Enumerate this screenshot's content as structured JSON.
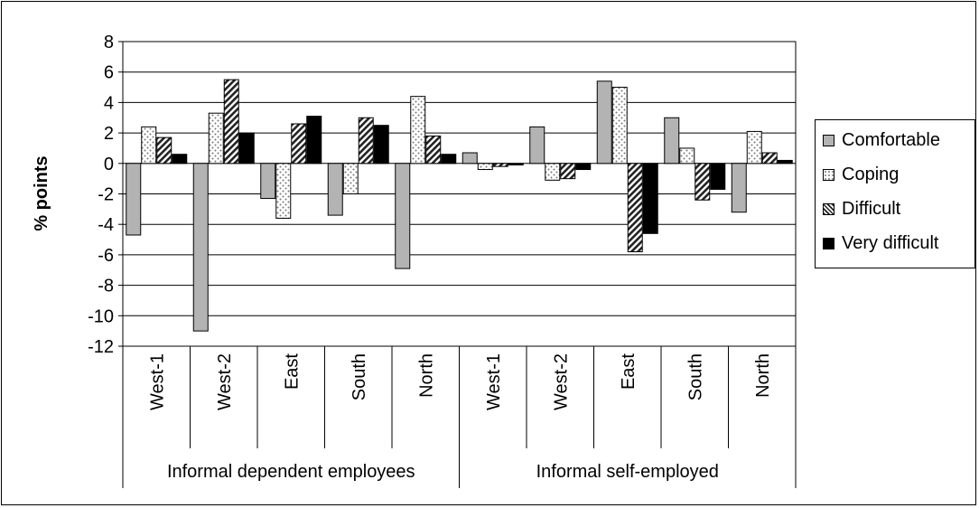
{
  "chart_data": {
    "type": "bar",
    "ylabel": "% points",
    "ylim": [
      -12,
      8
    ],
    "ytick_step": 2,
    "grid": true,
    "legend_position": "right",
    "groups": [
      {
        "label": "Informal dependent employees",
        "categories": [
          "West-1",
          "West-2",
          "East",
          "South",
          "North"
        ]
      },
      {
        "label": "Informal self-employed",
        "categories": [
          "West-1",
          "West-2",
          "East",
          "South",
          "North"
        ]
      }
    ],
    "series": [
      {
        "name": "Comfortable",
        "color": "#b3b3b3",
        "pattern": "solid",
        "values": [
          -4.7,
          -11.0,
          -2.3,
          -3.4,
          -6.9,
          0.7,
          2.4,
          5.4,
          3.0,
          -3.2
        ]
      },
      {
        "name": "Coping",
        "color": "#ffffff",
        "pattern": "dots",
        "values": [
          2.4,
          3.3,
          -3.6,
          -2.0,
          4.4,
          -0.4,
          -1.1,
          5.0,
          1.0,
          2.1
        ]
      },
      {
        "name": "Difficult",
        "color": "#ffffff",
        "pattern": "hatch",
        "values": [
          1.7,
          5.5,
          2.6,
          3.0,
          1.8,
          -0.2,
          -1.0,
          -5.8,
          -2.4,
          0.7
        ]
      },
      {
        "name": "Very difficult",
        "color": "#000000",
        "pattern": "solid",
        "values": [
          0.6,
          2.0,
          3.1,
          2.5,
          0.6,
          -0.1,
          -0.4,
          -4.6,
          -1.7,
          0.2
        ]
      }
    ]
  }
}
